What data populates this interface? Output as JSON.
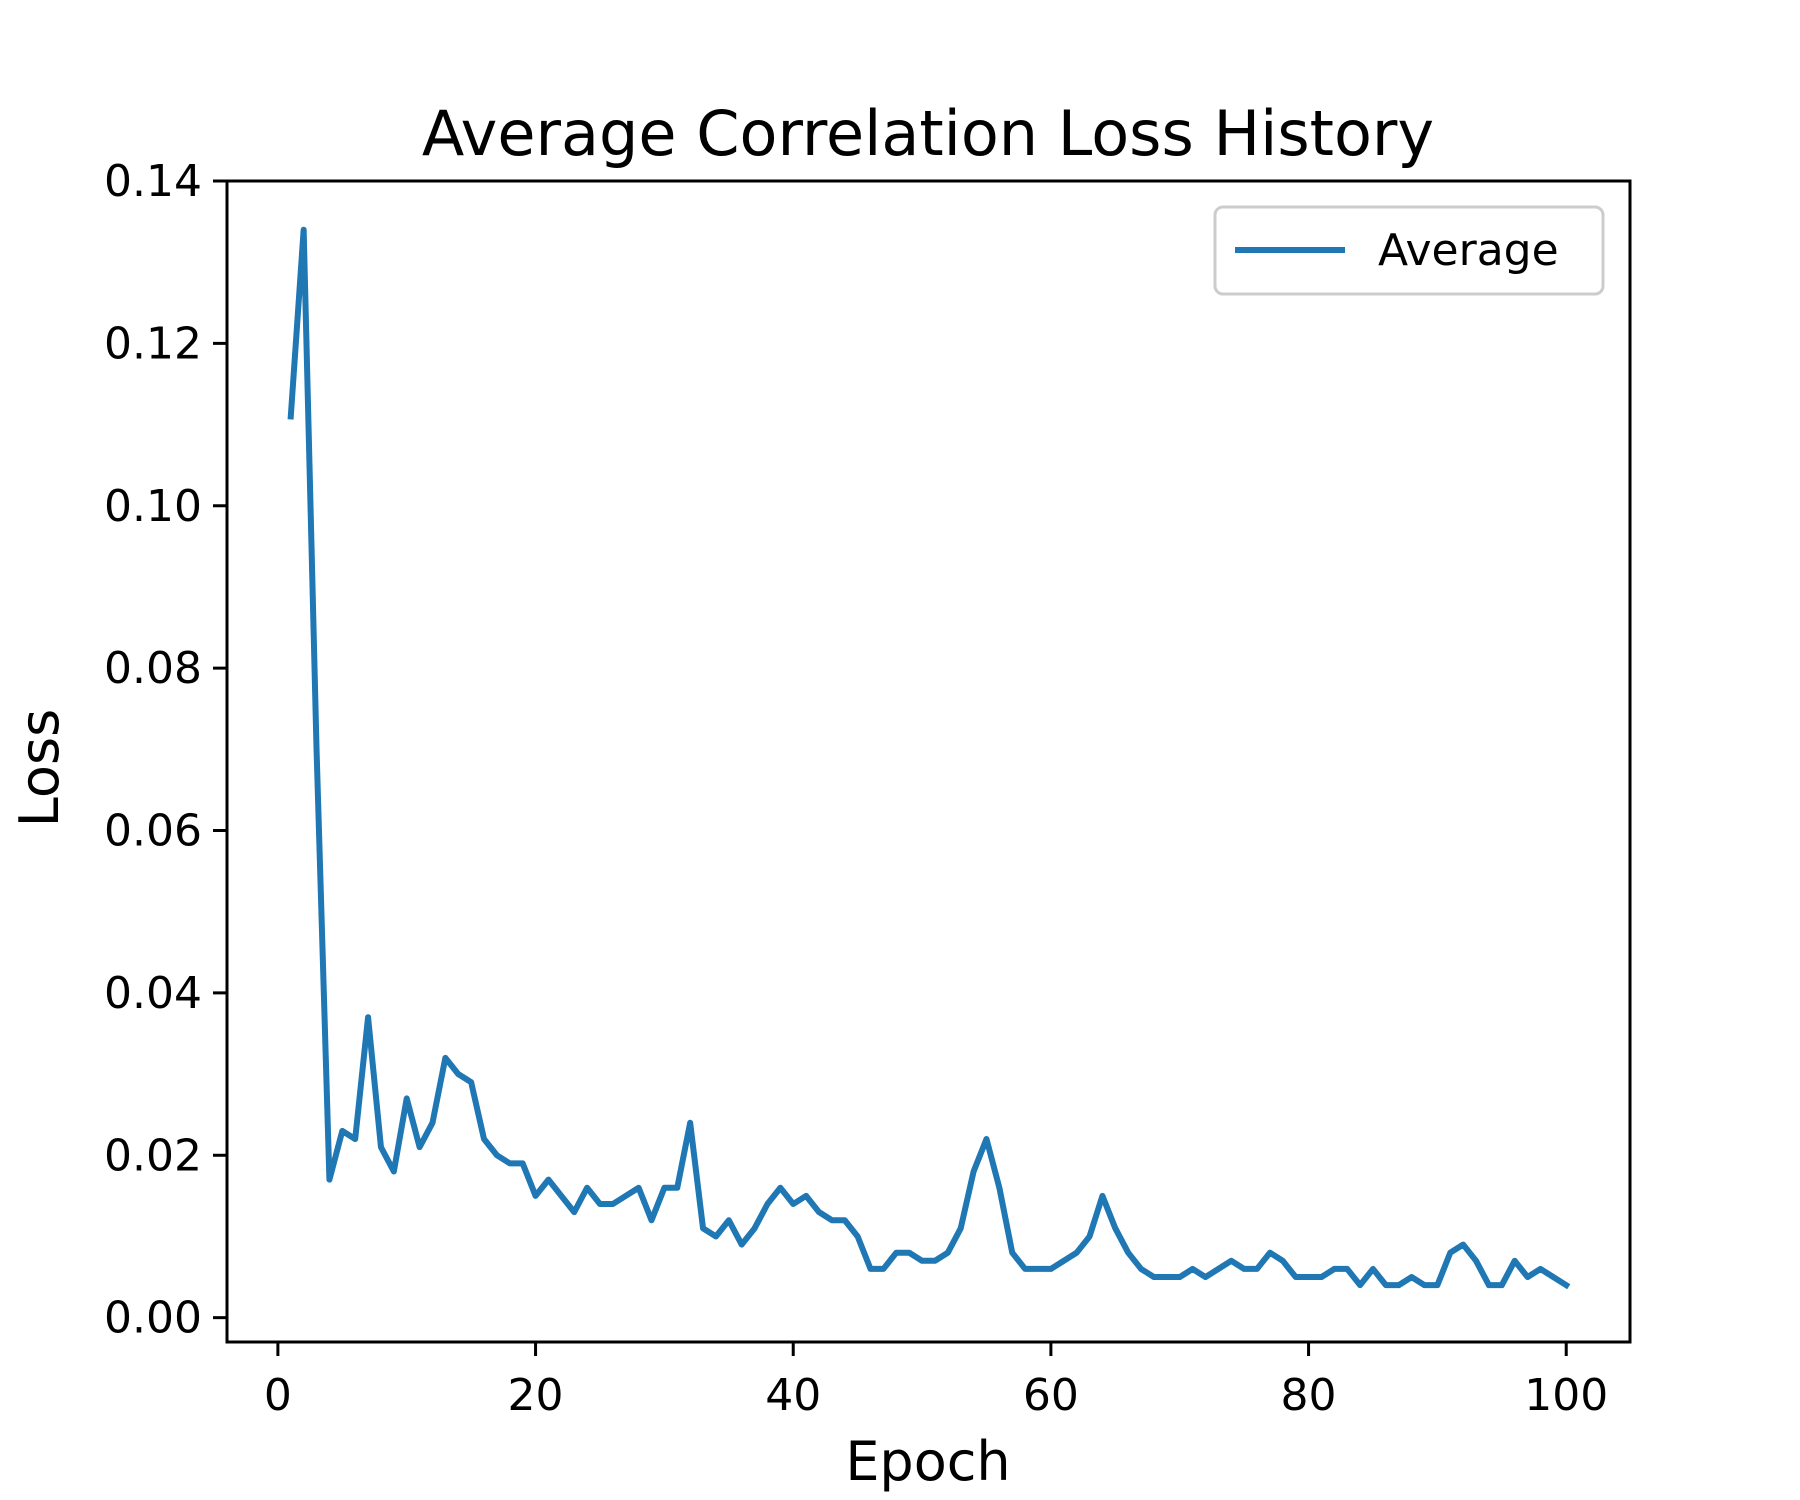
{
  "chart_data": {
    "type": "line",
    "title": "Average Correlation Loss History",
    "xlabel": "Epoch",
    "ylabel": "Loss",
    "xlim": [
      -3.95,
      104.95
    ],
    "ylim": [
      -0.003,
      0.14
    ],
    "xticks": [
      0,
      20,
      40,
      60,
      80,
      100
    ],
    "yticks": [
      0.0,
      0.02,
      0.04,
      0.06,
      0.08,
      0.1,
      0.12,
      0.14
    ],
    "grid": false,
    "legend": {
      "position": "top-right",
      "entries": [
        "Average"
      ]
    },
    "colors": {
      "series": "#1f77b4",
      "axis": "#000000",
      "background": "#ffffff",
      "legend_border": "#cccccc"
    },
    "series": [
      {
        "name": "Average",
        "x": [
          1,
          2,
          3,
          4,
          5,
          6,
          7,
          8,
          9,
          10,
          11,
          12,
          13,
          14,
          15,
          16,
          17,
          18,
          19,
          20,
          21,
          22,
          23,
          24,
          25,
          26,
          27,
          28,
          29,
          30,
          31,
          32,
          33,
          34,
          35,
          36,
          37,
          38,
          39,
          40,
          41,
          42,
          43,
          44,
          45,
          46,
          47,
          48,
          49,
          50,
          51,
          52,
          53,
          54,
          55,
          56,
          57,
          58,
          59,
          60,
          61,
          62,
          63,
          64,
          65,
          66,
          67,
          68,
          69,
          70,
          71,
          72,
          73,
          74,
          75,
          76,
          77,
          78,
          79,
          80,
          81,
          82,
          83,
          84,
          85,
          86,
          87,
          88,
          89,
          90,
          91,
          92,
          93,
          94,
          95,
          96,
          97,
          98,
          99,
          100
        ],
        "values": [
          0.111,
          0.134,
          0.07,
          0.017,
          0.023,
          0.022,
          0.037,
          0.021,
          0.018,
          0.027,
          0.021,
          0.024,
          0.032,
          0.03,
          0.029,
          0.022,
          0.02,
          0.019,
          0.019,
          0.015,
          0.017,
          0.015,
          0.013,
          0.016,
          0.014,
          0.014,
          0.015,
          0.016,
          0.012,
          0.016,
          0.016,
          0.024,
          0.011,
          0.01,
          0.012,
          0.009,
          0.011,
          0.014,
          0.016,
          0.014,
          0.015,
          0.013,
          0.012,
          0.012,
          0.01,
          0.006,
          0.006,
          0.008,
          0.008,
          0.007,
          0.007,
          0.008,
          0.011,
          0.018,
          0.022,
          0.016,
          0.008,
          0.006,
          0.006,
          0.006,
          0.007,
          0.008,
          0.01,
          0.015,
          0.011,
          0.008,
          0.006,
          0.005,
          0.005,
          0.005,
          0.006,
          0.005,
          0.006,
          0.007,
          0.006,
          0.006,
          0.008,
          0.007,
          0.005,
          0.005,
          0.005,
          0.006,
          0.006,
          0.004,
          0.006,
          0.004,
          0.004,
          0.005,
          0.004,
          0.004,
          0.008,
          0.009,
          0.007,
          0.004,
          0.004,
          0.007,
          0.005,
          0.006,
          0.005,
          0.004
        ]
      }
    ]
  }
}
